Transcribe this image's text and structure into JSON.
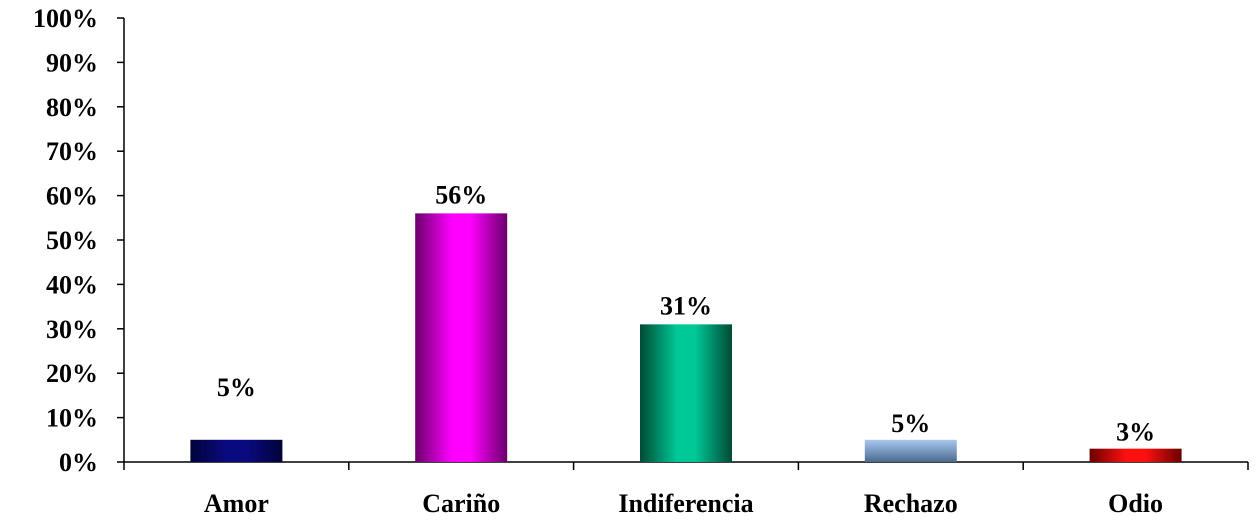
{
  "chart_data": {
    "type": "bar",
    "categories": [
      "Amor",
      "Cariño",
      "Indiferencia",
      "Rechazo",
      "Odio"
    ],
    "values": [
      5,
      56,
      31,
      5,
      3
    ],
    "data_labels": [
      "5%",
      "56%",
      "31%",
      "5%",
      "3%"
    ],
    "ylim": [
      0,
      100
    ],
    "ytick_labels": [
      "0%",
      "10%",
      "20%",
      "30%",
      "40%",
      "50%",
      "60%",
      "70%",
      "80%",
      "90%",
      "100%"
    ],
    "grid": false,
    "legend": "none",
    "colors": {
      "Amor": [
        "#02023a",
        "#0a0a80"
      ],
      "Cariño": [
        "#6a006a",
        "#ff00ff"
      ],
      "Indiferencia": [
        "#004a34",
        "#00c896"
      ],
      "Rechazo": [
        "#4a6a8e",
        "#a8c8f0"
      ],
      "Odio": [
        "#6a0000",
        "#ff1010"
      ]
    }
  }
}
